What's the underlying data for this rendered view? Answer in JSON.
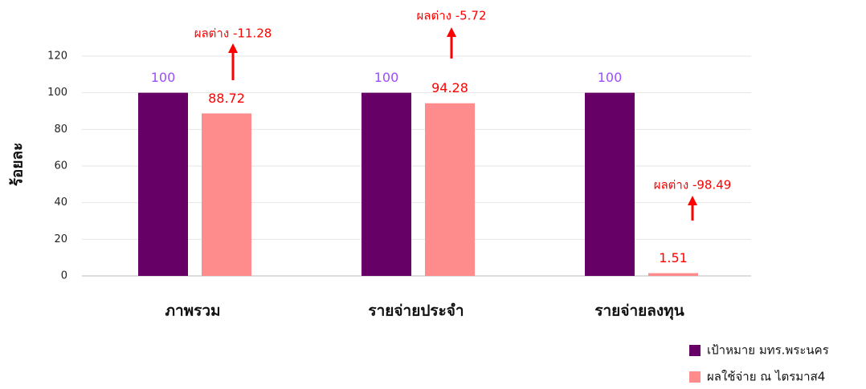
{
  "chart_data": {
    "type": "bar",
    "ylabel": "ร้อยละ",
    "categories": [
      "ภาพรวม",
      "รายจ่ายประจำ",
      "รายจ่ายลงทุน"
    ],
    "series": [
      {
        "name": "เป้าหมาย มทร.พระนคร",
        "color": "#660066",
        "label_color": "#9b4dff",
        "values": [
          100,
          100,
          100
        ]
      },
      {
        "name": "ผลใช้จ่าย ณ ไตรมาส4",
        "color": "#ff8c8c",
        "label_color": "#ff0000",
        "values": [
          88.72,
          94.28,
          1.51
        ]
      }
    ],
    "annotations": [
      "ผลต่าง -11.28",
      "ผลต่าง -5.72",
      "ผลต่าง -98.49"
    ],
    "ylim": [
      0,
      120
    ],
    "yticks": [
      0,
      20,
      40,
      60,
      80,
      100,
      120
    ],
    "grid": true,
    "legend": "lower right"
  }
}
